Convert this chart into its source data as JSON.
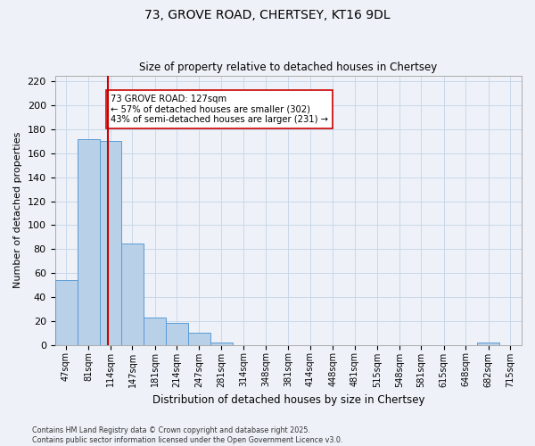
{
  "title": "73, GROVE ROAD, CHERTSEY, KT16 9DL",
  "subtitle": "Size of property relative to detached houses in Chertsey",
  "xlabel": "Distribution of detached houses by size in Chertsey",
  "ylabel": "Number of detached properties",
  "bin_edges": [
    30.5,
    64,
    97.5,
    130.5,
    164,
    197.5,
    230.5,
    264,
    297.5,
    331,
    364.5,
    397.5,
    431,
    464.5,
    498,
    531.5,
    564.5,
    598,
    631.5,
    665,
    698.5,
    732
  ],
  "bin_centers": [
    47,
    81,
    114,
    147,
    181,
    214,
    247,
    281,
    314,
    348,
    381,
    414,
    448,
    481,
    515,
    548,
    581,
    615,
    648,
    682,
    715
  ],
  "bin_labels": [
    "47sqm",
    "81sqm",
    "114sqm",
    "147sqm",
    "181sqm",
    "214sqm",
    "247sqm",
    "281sqm",
    "314sqm",
    "348sqm",
    "381sqm",
    "414sqm",
    "448sqm",
    "481sqm",
    "515sqm",
    "548sqm",
    "581sqm",
    "615sqm",
    "648sqm",
    "682sqm",
    "715sqm"
  ],
  "counts": [
    54,
    172,
    170,
    85,
    23,
    18,
    10,
    2,
    0,
    0,
    0,
    0,
    0,
    0,
    0,
    0,
    0,
    0,
    0,
    2,
    0
  ],
  "bar_color": "#b8d0e8",
  "bar_edge_color": "#5b9bd5",
  "grid_color": "#c8d8ea",
  "bg_color": "#eef2f8",
  "vline_x": 114,
  "vline_color": "#cc0000",
  "annotation_text": "73 GROVE ROAD: 127sqm\n← 57% of detached houses are smaller (302)\n43% of semi-detached houses are larger (231) →",
  "annotation_box_color": "#ffffff",
  "annotation_box_edge": "#cc0000",
  "ylim": [
    0,
    225
  ],
  "yticks": [
    0,
    20,
    40,
    60,
    80,
    100,
    120,
    140,
    160,
    180,
    200,
    220
  ],
  "footer_line1": "Contains HM Land Registry data © Crown copyright and database right 2025.",
  "footer_line2": "Contains public sector information licensed under the Open Government Licence v3.0."
}
